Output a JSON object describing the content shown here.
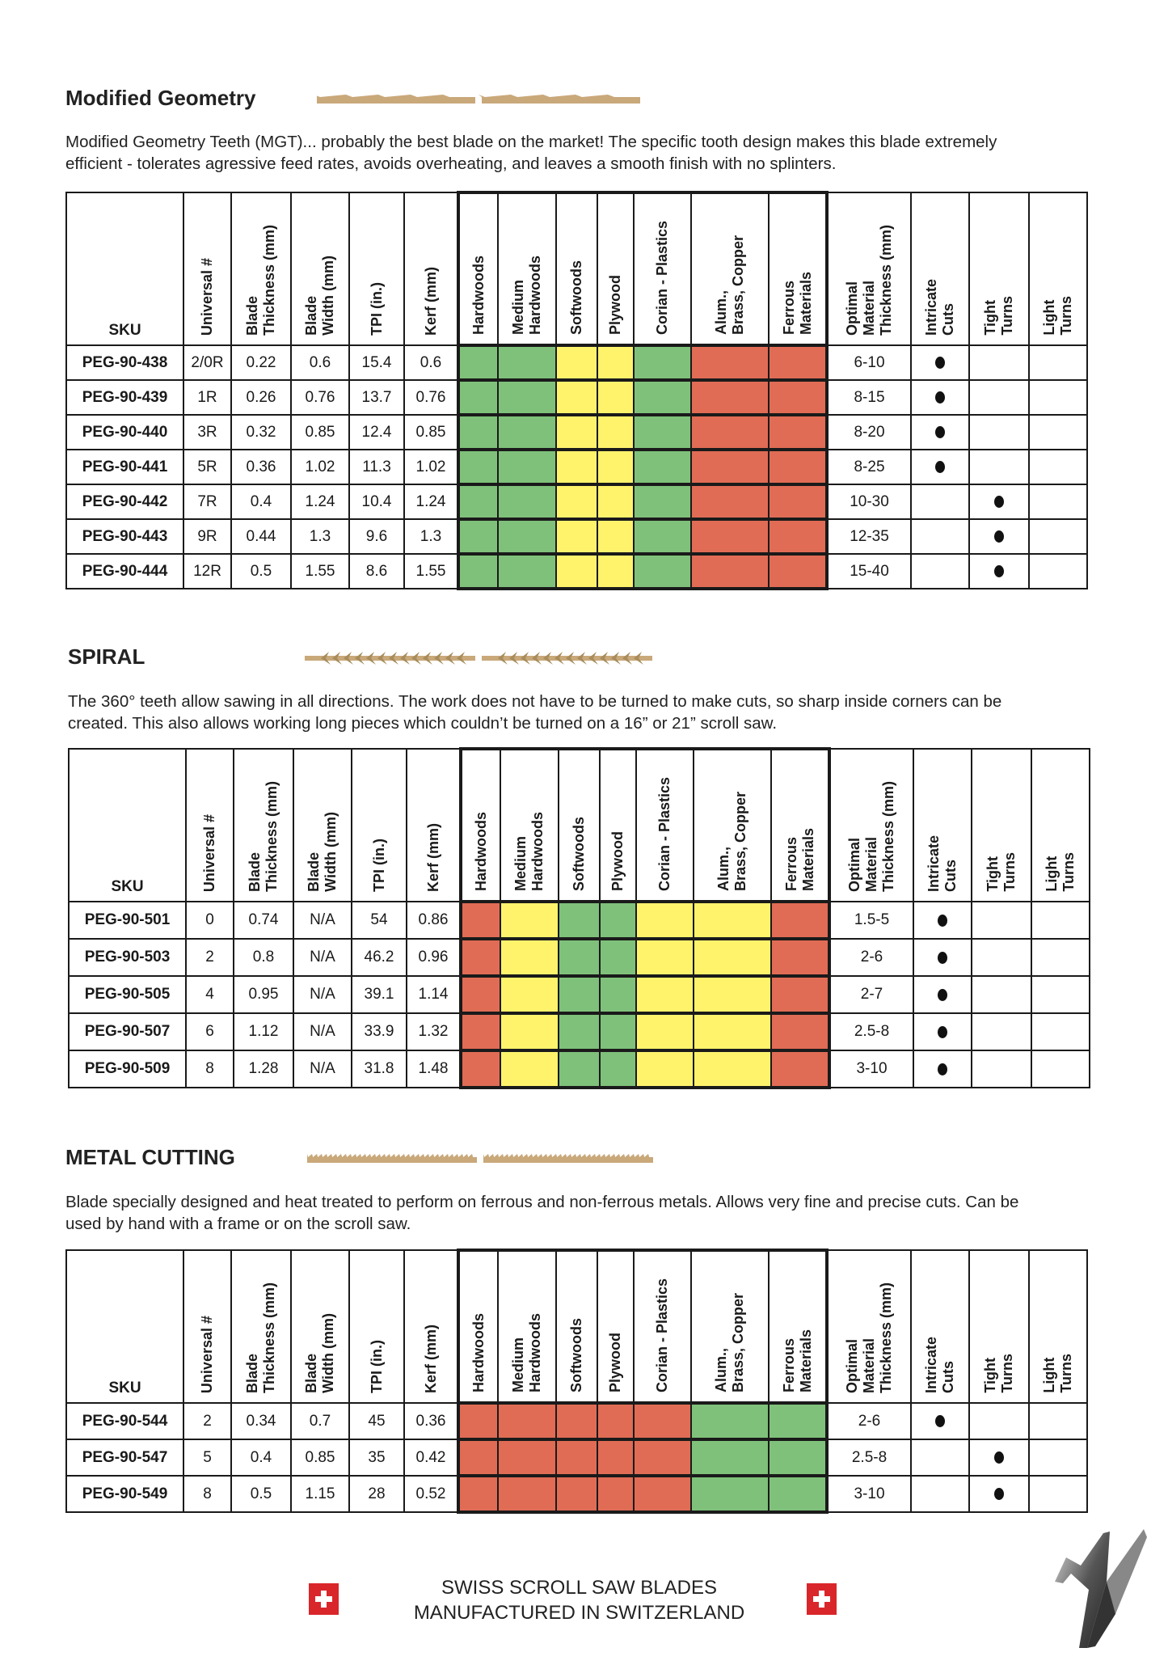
{
  "colors": {
    "G": "#7fc17a",
    "Y": "#fff36c",
    "R": "#e06c55",
    "blade": "#c9a87a"
  },
  "headers": [
    "SKU",
    "Universal #",
    "Blade\nThickness (mm)",
    "Blade\nWidth (mm)",
    "TPI (in.)",
    "Kerf (mm)",
    "Hardwoods",
    "Medium\nHardwoods",
    "Softwoods",
    "Plywood",
    "Corian  - Plastics",
    "Alum.,\nBrass, Copper",
    "Ferrous\nMaterials",
    "Optimal\nMaterial\nThickness (mm)",
    "Intricate\nCuts",
    "Tight\nTurns",
    "Light\nTurns"
  ],
  "sections": [
    {
      "title": "Modified Geometry",
      "blade_icon": "mgt-blade",
      "description": [
        "Modified Geometry Teeth (MGT)... probably the best blade on the market! The specific tooth design makes this blade extremely",
        "efficient - tolerates agressive feed rates, avoids overheating, and leaves a smooth finish with no splinters."
      ],
      "rows": [
        {
          "sku": "PEG-90-438",
          "universal": "2/0R",
          "thickness": "0.22",
          "width": "0.6",
          "tpi": "15.4",
          "kerf": "0.6",
          "materials": [
            "G",
            "G",
            "Y",
            "Y",
            "G",
            "R",
            "R"
          ],
          "optimal": "6-10",
          "use": "intricate"
        },
        {
          "sku": "PEG-90-439",
          "universal": "1R",
          "thickness": "0.26",
          "width": "0.76",
          "tpi": "13.7",
          "kerf": "0.76",
          "materials": [
            "G",
            "G",
            "Y",
            "Y",
            "G",
            "R",
            "R"
          ],
          "optimal": "8-15",
          "use": "intricate"
        },
        {
          "sku": "PEG-90-440",
          "universal": "3R",
          "thickness": "0.32",
          "width": "0.85",
          "tpi": "12.4",
          "kerf": "0.85",
          "materials": [
            "G",
            "G",
            "Y",
            "Y",
            "G",
            "R",
            "R"
          ],
          "optimal": "8-20",
          "use": "intricate"
        },
        {
          "sku": "PEG-90-441",
          "universal": "5R",
          "thickness": "0.36",
          "width": "1.02",
          "tpi": "11.3",
          "kerf": "1.02",
          "materials": [
            "G",
            "G",
            "Y",
            "Y",
            "G",
            "R",
            "R"
          ],
          "optimal": "8-25",
          "use": "intricate"
        },
        {
          "sku": "PEG-90-442",
          "universal": "7R",
          "thickness": "0.4",
          "width": "1.24",
          "tpi": "10.4",
          "kerf": "1.24",
          "materials": [
            "G",
            "G",
            "Y",
            "Y",
            "G",
            "R",
            "R"
          ],
          "optimal": "10-30",
          "use": "tight"
        },
        {
          "sku": "PEG-90-443",
          "universal": "9R",
          "thickness": "0.44",
          "width": "1.3",
          "tpi": "9.6",
          "kerf": "1.3",
          "materials": [
            "G",
            "G",
            "Y",
            "Y",
            "G",
            "R",
            "R"
          ],
          "optimal": "12-35",
          "use": "tight"
        },
        {
          "sku": "PEG-90-444",
          "universal": "12R",
          "thickness": "0.5",
          "width": "1.55",
          "tpi": "8.6",
          "kerf": "1.55",
          "materials": [
            "G",
            "G",
            "Y",
            "Y",
            "G",
            "R",
            "R"
          ],
          "optimal": "15-40",
          "use": "tight"
        }
      ]
    },
    {
      "title": "SPIRAL",
      "blade_icon": "spiral-blade",
      "description": [
        "The 360° teeth allow sawing in all directions. The work does not have to be turned to make cuts, so sharp inside corners can be",
        "created. This also allows working long pieces which couldn’t be turned on a 16” or 21” scroll saw."
      ],
      "rows": [
        {
          "sku": "PEG-90-501",
          "universal": "0",
          "thickness": "0.74",
          "width": "N/A",
          "tpi": "54",
          "kerf": "0.86",
          "materials": [
            "R",
            "Y",
            "G",
            "G",
            "Y",
            "Y",
            "R"
          ],
          "optimal": "1.5-5",
          "use": "intricate"
        },
        {
          "sku": "PEG-90-503",
          "universal": "2",
          "thickness": "0.8",
          "width": "N/A",
          "tpi": "46.2",
          "kerf": "0.96",
          "materials": [
            "R",
            "Y",
            "G",
            "G",
            "Y",
            "Y",
            "R"
          ],
          "optimal": "2-6",
          "use": "intricate"
        },
        {
          "sku": "PEG-90-505",
          "universal": "4",
          "thickness": "0.95",
          "width": "N/A",
          "tpi": "39.1",
          "kerf": "1.14",
          "materials": [
            "R",
            "Y",
            "G",
            "G",
            "Y",
            "Y",
            "R"
          ],
          "optimal": "2-7",
          "use": "intricate"
        },
        {
          "sku": "PEG-90-507",
          "universal": "6",
          "thickness": "1.12",
          "width": "N/A",
          "tpi": "33.9",
          "kerf": "1.32",
          "materials": [
            "R",
            "Y",
            "G",
            "G",
            "Y",
            "Y",
            "R"
          ],
          "optimal": "2.5-8",
          "use": "intricate"
        },
        {
          "sku": "PEG-90-509",
          "universal": "8",
          "thickness": "1.28",
          "width": "N/A",
          "tpi": "31.8",
          "kerf": "1.48",
          "materials": [
            "R",
            "Y",
            "G",
            "G",
            "Y",
            "Y",
            "R"
          ],
          "optimal": "3-10",
          "use": "intricate"
        }
      ]
    },
    {
      "title": "METAL CUTTING",
      "blade_icon": "metal-cutting-blade",
      "description": [
        "Blade specially designed and heat treated to perform on ferrous and non-ferrous metals. Allows very fine and precise cuts. Can be",
        "used by hand with a frame or on the scroll saw."
      ],
      "rows": [
        {
          "sku": "PEG-90-544",
          "universal": "2",
          "thickness": "0.34",
          "width": "0.7",
          "tpi": "45",
          "kerf": "0.36",
          "materials": [
            "R",
            "R",
            "R",
            "R",
            "R",
            "G",
            "G"
          ],
          "optimal": "2-6",
          "use": "intricate"
        },
        {
          "sku": "PEG-90-547",
          "universal": "5",
          "thickness": "0.4",
          "width": "0.85",
          "tpi": "35",
          "kerf": "0.42",
          "materials": [
            "R",
            "R",
            "R",
            "R",
            "R",
            "G",
            "G"
          ],
          "optimal": "2.5-8",
          "use": "tight"
        },
        {
          "sku": "PEG-90-549",
          "universal": "8",
          "thickness": "0.5",
          "width": "1.15",
          "tpi": "28",
          "kerf": "0.52",
          "materials": [
            "R",
            "R",
            "R",
            "R",
            "R",
            "G",
            "G"
          ],
          "optimal": "3-10",
          "use": "tight"
        }
      ]
    }
  ],
  "footer": {
    "line1": "SWISS SCROLL SAW BLADES",
    "line2": "MANUFACTURED IN SWITZERLAND",
    "flag_icon": "swiss-flag-icon",
    "logo_icon": "pegas-horse-logo"
  }
}
